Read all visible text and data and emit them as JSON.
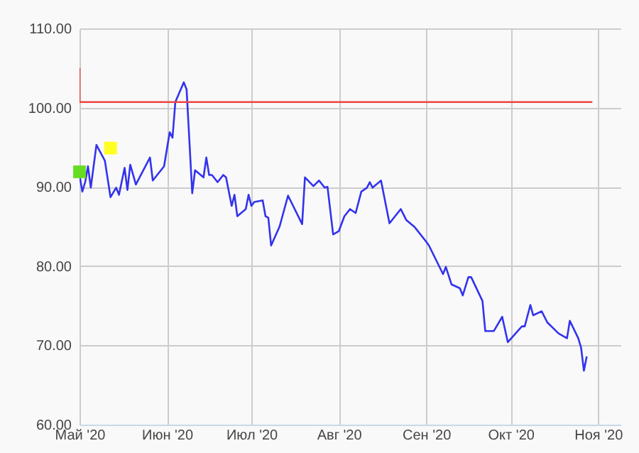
{
  "chart_data": {
    "type": "line",
    "xlim": [
      "2020-05-01",
      "2020-11-09"
    ],
    "xticks": [
      {
        "value": "2020-05-01",
        "label": "Май '20"
      },
      {
        "value": "2020-06-01",
        "label": "Июн '20"
      },
      {
        "value": "2020-07-01",
        "label": "Июл '20"
      },
      {
        "value": "2020-08-01",
        "label": "Авг '20"
      },
      {
        "value": "2020-09-01",
        "label": "Сен '20"
      },
      {
        "value": "2020-10-01",
        "label": "Окт '20"
      },
      {
        "value": "2020-11-01",
        "label": "Ноя '20"
      }
    ],
    "ylim": [
      60,
      110
    ],
    "yticks": [
      {
        "value": 60,
        "label": "60.00"
      },
      {
        "value": 70,
        "label": "70.00"
      },
      {
        "value": 80,
        "label": "80.00"
      },
      {
        "value": 90,
        "label": "90.00"
      },
      {
        "value": 100,
        "label": "100.00"
      },
      {
        "value": 110,
        "label": "110.00"
      }
    ],
    "grid": true,
    "series": [
      {
        "type": "line",
        "color": "#3333ee",
        "marker": "none",
        "x": [
          "2020-05-01",
          "2020-05-02",
          "2020-05-03",
          "2020-05-04",
          "2020-05-05",
          "2020-05-07",
          "2020-05-10",
          "2020-05-12",
          "2020-05-14",
          "2020-05-15",
          "2020-05-17",
          "2020-05-18",
          "2020-05-19",
          "2020-05-21",
          "2020-05-26",
          "2020-05-27",
          "2020-05-31",
          "2020-06-02",
          "2020-06-03",
          "2020-06-04",
          "2020-06-07",
          "2020-06-08",
          "2020-06-10",
          "2020-06-11",
          "2020-06-14",
          "2020-06-15",
          "2020-06-16",
          "2020-06-17",
          "2020-06-19",
          "2020-06-21",
          "2020-06-22",
          "2020-06-24",
          "2020-06-25",
          "2020-06-26",
          "2020-06-29",
          "2020-06-30",
          "2020-07-01",
          "2020-07-02",
          "2020-07-05",
          "2020-07-06",
          "2020-07-07",
          "2020-07-08",
          "2020-07-11",
          "2020-07-14",
          "2020-07-19",
          "2020-07-20",
          "2020-07-23",
          "2020-07-25",
          "2020-07-27",
          "2020-07-28",
          "2020-07-30",
          "2020-08-01",
          "2020-08-03",
          "2020-08-05",
          "2020-08-07",
          "2020-08-09",
          "2020-08-11",
          "2020-08-12",
          "2020-08-13",
          "2020-08-16",
          "2020-08-18",
          "2020-08-19",
          "2020-08-23",
          "2020-08-25",
          "2020-08-28",
          "2020-09-01",
          "2020-09-02",
          "2020-09-07",
          "2020-09-08",
          "2020-09-10",
          "2020-09-13",
          "2020-09-14",
          "2020-09-16",
          "2020-09-17",
          "2020-09-21",
          "2020-09-22",
          "2020-09-25",
          "2020-09-28",
          "2020-09-30",
          "2020-10-05",
          "2020-10-06",
          "2020-10-08",
          "2020-10-09",
          "2020-10-12",
          "2020-10-14",
          "2020-10-18",
          "2020-10-21",
          "2020-10-22",
          "2020-10-25",
          "2020-10-26",
          "2020-10-27",
          "2020-10-28"
        ],
        "values": [
          91.5,
          89.4,
          90.6,
          92.6,
          89.9,
          95.3,
          93.3,
          88.7,
          89.9,
          89.0,
          92.4,
          89.6,
          92.8,
          90.3,
          93.7,
          90.8,
          92.6,
          96.9,
          96.2,
          100.7,
          103.2,
          102.3,
          89.2,
          92.1,
          91.2,
          93.7,
          91.5,
          91.5,
          90.6,
          91.5,
          91.2,
          87.6,
          89.0,
          86.3,
          87.2,
          89.0,
          87.6,
          88.1,
          88.3,
          86.3,
          86.1,
          82.6,
          85.0,
          88.9,
          85.3,
          91.2,
          90.1,
          90.8,
          89.9,
          90.0,
          84.0,
          84.4,
          86.3,
          87.2,
          86.7,
          89.4,
          89.9,
          90.6,
          89.9,
          90.8,
          87.2,
          85.4,
          87.2,
          85.8,
          84.9,
          83.1,
          82.6,
          79.0,
          79.9,
          77.7,
          77.2,
          76.3,
          78.6,
          78.6,
          75.6,
          71.8,
          71.8,
          73.6,
          70.4,
          72.4,
          72.4,
          75.1,
          73.8,
          74.3,
          72.9,
          71.5,
          70.9,
          73.1,
          70.9,
          69.7,
          66.8,
          68.6
        ]
      },
      {
        "type": "line",
        "color": "#ee4444",
        "marker": "none",
        "x": [
          "2020-05-01",
          "2020-05-01",
          "2020-10-30"
        ],
        "values": [
          105,
          100.7,
          100.7
        ]
      },
      {
        "type": "scatter",
        "color": "#66dd22",
        "marker": "square",
        "x": [
          "2020-05-01"
        ],
        "values": [
          91.9
        ]
      },
      {
        "type": "scatter",
        "color": "#ffff22",
        "marker": "square",
        "x": [
          "2020-05-12"
        ],
        "values": [
          94.9
        ]
      }
    ]
  }
}
